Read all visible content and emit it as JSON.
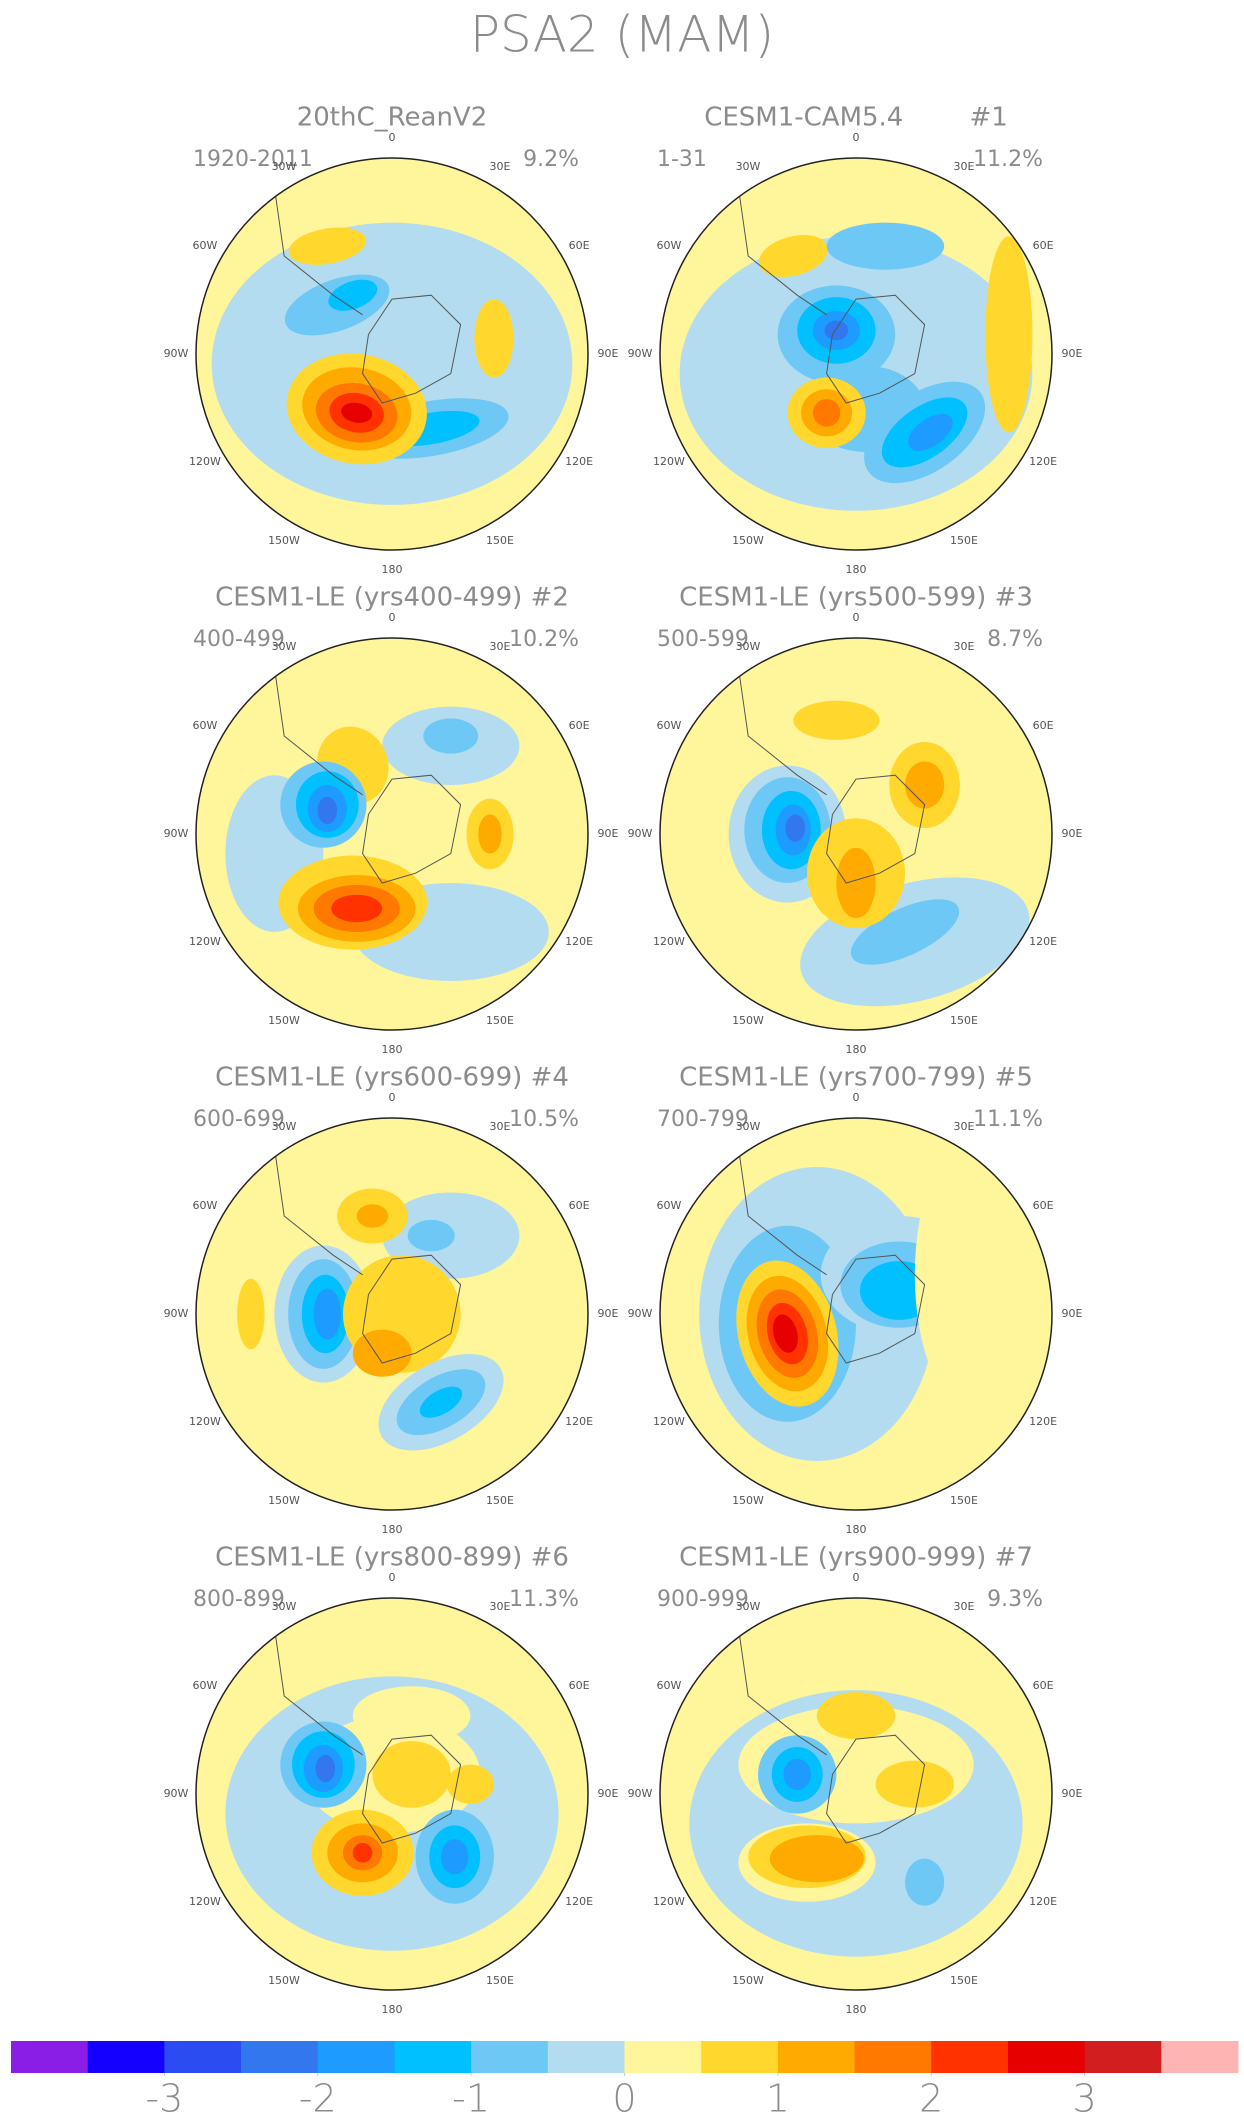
{
  "chart_data": {
    "type": "polar-map-panels",
    "title": "PSA2 (MAM)",
    "panels": [
      {
        "title": "20thC_ReanV2",
        "period": "1920-2011",
        "explained": "9.2%"
      },
      {
        "title": "CESM1-CAM5.4        #1",
        "period": "1-31",
        "explained": "11.2%"
      },
      {
        "title": "CESM1-LE (yrs400-499) #2",
        "period": "400-499",
        "explained": "10.2%"
      },
      {
        "title": "CESM1-LE (yrs500-599) #3",
        "period": "500-599",
        "explained": "8.7%"
      },
      {
        "title": "CESM1-LE (yrs600-699) #4",
        "period": "600-699",
        "explained": "10.5%"
      },
      {
        "title": "CESM1-LE (yrs700-799) #5",
        "period": "700-799",
        "explained": "11.1%"
      },
      {
        "title": "CESM1-LE (yrs800-899) #6",
        "period": "800-899",
        "explained": "11.3%"
      },
      {
        "title": "CESM1-LE (yrs900-999) #7",
        "period": "900-999",
        "explained": "9.3%"
      }
    ],
    "lon_labels": [
      "0",
      "30E",
      "60E",
      "90E",
      "120E",
      "150E",
      "180",
      "150W",
      "120W",
      "90W",
      "60W",
      "30W"
    ],
    "colorbar": {
      "colors": [
        "#8a1ee6",
        "#1400ff",
        "#2b4cf0",
        "#3377ee",
        "#1e9bff",
        "#00c0ff",
        "#6ec8f5",
        "#b4dcf0",
        "#fff59a",
        "#ffd72d",
        "#ffaa00",
        "#ff7800",
        "#ff3200",
        "#e60000",
        "#d21e1e",
        "#ffb4b4"
      ],
      "lim": [
        -4,
        4
      ],
      "ticks": [
        -3,
        -2,
        -1,
        0,
        1,
        2,
        3
      ]
    }
  }
}
